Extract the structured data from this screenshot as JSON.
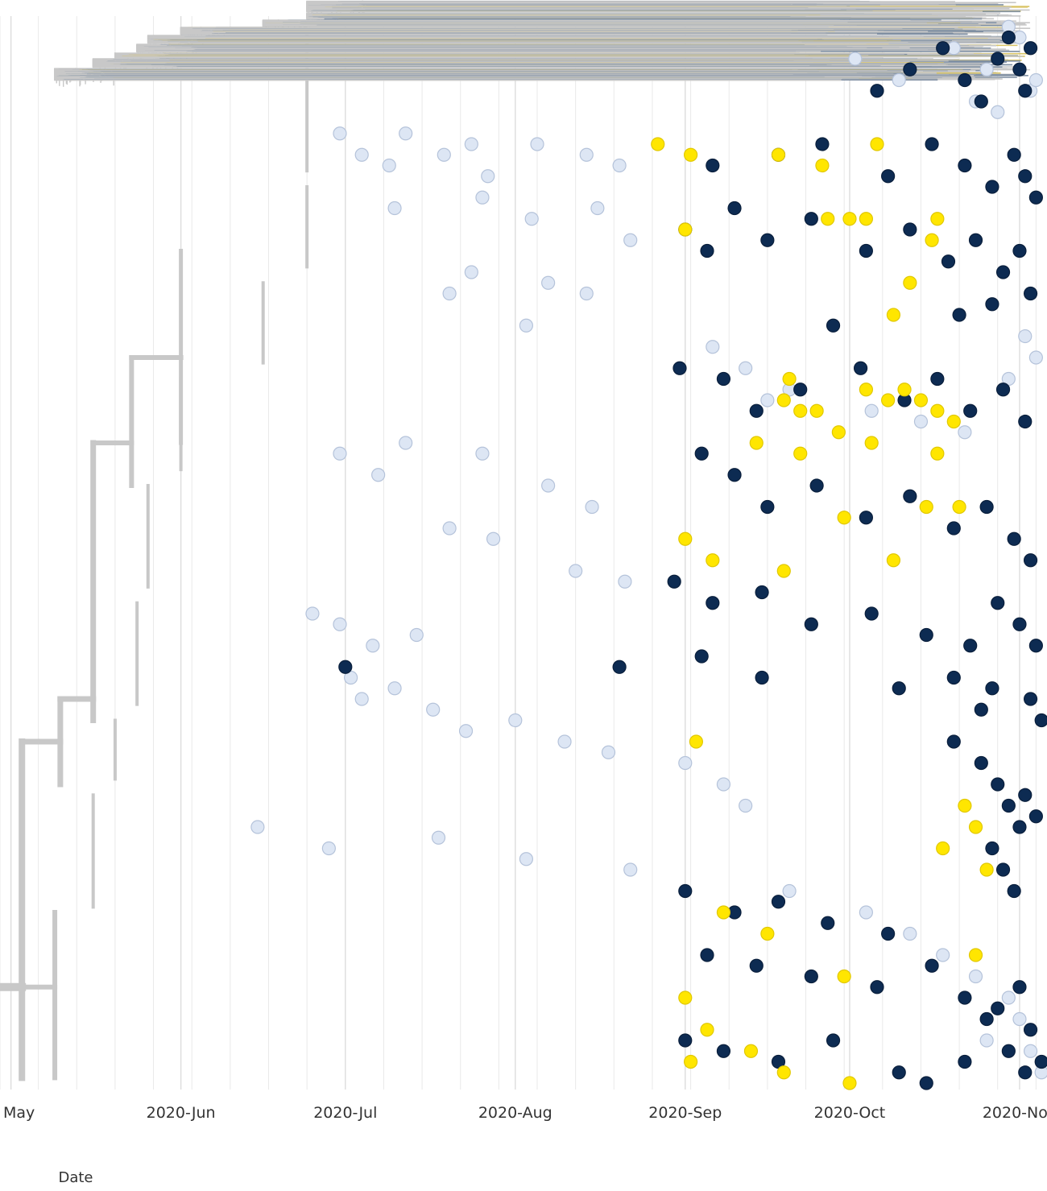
{
  "chart_data": {
    "type": "scatter",
    "subtype": "time-scaled phylogenetic tree",
    "xlabel": "Date",
    "x_ticks": [
      "2020-May",
      "2020-Jun",
      "2020-Jul",
      "2020-Aug",
      "2020-Sep",
      "2020-Oct",
      "2020-Nov"
    ],
    "x_tick_labels": [
      "May",
      "2020-Jun",
      "2020-Jul",
      "2020-Aug",
      "2020-Sep",
      "2020-Oct",
      "2020-Nov"
    ],
    "xlim": [
      "2020-04-29",
      "2020-11-06"
    ],
    "grid": true,
    "legend": "none",
    "colors": {
      "branch": "#c8c8c8",
      "branch_dark": "#7f8fa2",
      "branch_yellow": "#d9c466",
      "tip_light": "#dde6f4",
      "tip_light_stroke": "#b5c3da",
      "tip_dark": "#0d2b52",
      "tip_yellow": "#ffe600",
      "grid": "#e9e9e9"
    },
    "series": [
      {
        "color": "light-blue",
        "points": [
          [
            "2020-06-30",
            11
          ],
          [
            "2020-07-04",
            13
          ],
          [
            "2020-07-09",
            14
          ],
          [
            "2020-07-12",
            11
          ],
          [
            "2020-07-19",
            13
          ],
          [
            "2020-07-24",
            12
          ],
          [
            "2020-07-27",
            15
          ],
          [
            "2020-08-05",
            12
          ],
          [
            "2020-08-14",
            13
          ],
          [
            "2020-08-20",
            14
          ],
          [
            "2020-07-10",
            18
          ],
          [
            "2020-07-26",
            17
          ],
          [
            "2020-08-04",
            19
          ],
          [
            "2020-08-16",
            18
          ],
          [
            "2020-08-22",
            21
          ],
          [
            "2020-07-24",
            24
          ],
          [
            "2020-07-20",
            26
          ],
          [
            "2020-08-07",
            25
          ],
          [
            "2020-08-14",
            26
          ],
          [
            "2020-08-03",
            29
          ],
          [
            "2020-06-30",
            41
          ],
          [
            "2020-07-07",
            43
          ],
          [
            "2020-07-12",
            40
          ],
          [
            "2020-07-26",
            41
          ],
          [
            "2020-08-07",
            44
          ],
          [
            "2020-08-15",
            46
          ],
          [
            "2020-07-20",
            48
          ],
          [
            "2020-07-28",
            49
          ],
          [
            "2020-08-12",
            52
          ],
          [
            "2020-08-21",
            53
          ],
          [
            "2020-06-25",
            56
          ],
          [
            "2020-06-30",
            57
          ],
          [
            "2020-07-06",
            59
          ],
          [
            "2020-07-14",
            58
          ],
          [
            "2020-07-02",
            62
          ],
          [
            "2020-07-04",
            64
          ],
          [
            "2020-07-10",
            63
          ],
          [
            "2020-07-17",
            65
          ],
          [
            "2020-07-23",
            67
          ],
          [
            "2020-08-01",
            66
          ],
          [
            "2020-08-10",
            68
          ],
          [
            "2020-08-18",
            69
          ],
          [
            "2020-09-01",
            70
          ],
          [
            "2020-09-08",
            72
          ],
          [
            "2020-09-12",
            74
          ],
          [
            "2020-06-15",
            76
          ],
          [
            "2020-06-28",
            78
          ],
          [
            "2020-07-18",
            77
          ],
          [
            "2020-08-03",
            79
          ],
          [
            "2020-08-22",
            80
          ],
          [
            "2020-09-20",
            82
          ],
          [
            "2020-10-04",
            84
          ],
          [
            "2020-10-12",
            86
          ],
          [
            "2020-10-18",
            88
          ],
          [
            "2020-10-24",
            90
          ],
          [
            "2020-10-30",
            92
          ],
          [
            "2020-11-01",
            94
          ],
          [
            "2020-11-03",
            97
          ],
          [
            "2020-11-05",
            99
          ],
          [
            "2020-10-26",
            96
          ],
          [
            "2020-10-02",
            4
          ],
          [
            "2020-10-10",
            6
          ],
          [
            "2020-10-20",
            3
          ],
          [
            "2020-10-26",
            5
          ],
          [
            "2020-11-01",
            2
          ],
          [
            "2020-11-03",
            7
          ],
          [
            "2020-10-28",
            9
          ],
          [
            "2020-10-30",
            1
          ],
          [
            "2020-10-24",
            8
          ],
          [
            "2020-11-04",
            6
          ],
          [
            "2020-09-06",
            31
          ],
          [
            "2020-09-12",
            33
          ],
          [
            "2020-09-20",
            35
          ],
          [
            "2020-10-05",
            37
          ],
          [
            "2020-10-22",
            39
          ],
          [
            "2020-11-02",
            30
          ],
          [
            "2020-11-04",
            32
          ],
          [
            "2020-10-30",
            34
          ],
          [
            "2020-09-16",
            36
          ],
          [
            "2020-10-14",
            38
          ]
        ]
      },
      {
        "color": "dark-navy",
        "points": [
          [
            "2020-10-06",
            7
          ],
          [
            "2020-10-12",
            5
          ],
          [
            "2020-10-18",
            3
          ],
          [
            "2020-10-22",
            6
          ],
          [
            "2020-10-25",
            8
          ],
          [
            "2020-10-28",
            4
          ],
          [
            "2020-10-30",
            2
          ],
          [
            "2020-11-01",
            5
          ],
          [
            "2020-11-02",
            7
          ],
          [
            "2020-11-03",
            3
          ],
          [
            "2020-09-06",
            14
          ],
          [
            "2020-09-18",
            13
          ],
          [
            "2020-09-26",
            12
          ],
          [
            "2020-10-08",
            15
          ],
          [
            "2020-10-16",
            12
          ],
          [
            "2020-10-22",
            14
          ],
          [
            "2020-10-27",
            16
          ],
          [
            "2020-10-31",
            13
          ],
          [
            "2020-11-02",
            15
          ],
          [
            "2020-11-04",
            17
          ],
          [
            "2020-09-01",
            20
          ],
          [
            "2020-09-05",
            22
          ],
          [
            "2020-09-10",
            18
          ],
          [
            "2020-09-16",
            21
          ],
          [
            "2020-09-24",
            19
          ],
          [
            "2020-10-04",
            22
          ],
          [
            "2020-10-12",
            20
          ],
          [
            "2020-10-19",
            23
          ],
          [
            "2020-10-24",
            21
          ],
          [
            "2020-10-29",
            24
          ],
          [
            "2020-11-01",
            22
          ],
          [
            "2020-11-03",
            26
          ],
          [
            "2020-10-27",
            27
          ],
          [
            "2020-10-21",
            28
          ],
          [
            "2020-09-28",
            29
          ],
          [
            "2020-08-31",
            33
          ],
          [
            "2020-09-08",
            34
          ],
          [
            "2020-09-14",
            37
          ],
          [
            "2020-09-22",
            35
          ],
          [
            "2020-10-03",
            33
          ],
          [
            "2020-10-11",
            36
          ],
          [
            "2020-10-17",
            34
          ],
          [
            "2020-10-23",
            37
          ],
          [
            "2020-10-29",
            35
          ],
          [
            "2020-11-02",
            38
          ],
          [
            "2020-09-04",
            41
          ],
          [
            "2020-09-10",
            43
          ],
          [
            "2020-09-16",
            46
          ],
          [
            "2020-09-25",
            44
          ],
          [
            "2020-10-04",
            47
          ],
          [
            "2020-10-12",
            45
          ],
          [
            "2020-10-20",
            48
          ],
          [
            "2020-10-26",
            46
          ],
          [
            "2020-10-31",
            49
          ],
          [
            "2020-11-03",
            51
          ],
          [
            "2020-08-30",
            53
          ],
          [
            "2020-09-06",
            55
          ],
          [
            "2020-09-15",
            54
          ],
          [
            "2020-09-24",
            57
          ],
          [
            "2020-10-05",
            56
          ],
          [
            "2020-10-15",
            58
          ],
          [
            "2020-10-23",
            59
          ],
          [
            "2020-10-28",
            55
          ],
          [
            "2020-11-01",
            57
          ],
          [
            "2020-11-04",
            59
          ],
          [
            "2020-07-01",
            61
          ],
          [
            "2020-08-20",
            61
          ],
          [
            "2020-09-04",
            60
          ],
          [
            "2020-09-15",
            62
          ],
          [
            "2020-10-10",
            63
          ],
          [
            "2020-10-20",
            62
          ],
          [
            "2020-10-27",
            63
          ],
          [
            "2020-11-03",
            64
          ],
          [
            "2020-11-05",
            66
          ],
          [
            "2020-10-25",
            65
          ],
          [
            "2020-10-20",
            68
          ],
          [
            "2020-10-25",
            70
          ],
          [
            "2020-10-28",
            72
          ],
          [
            "2020-10-30",
            74
          ],
          [
            "2020-11-01",
            76
          ],
          [
            "2020-10-27",
            78
          ],
          [
            "2020-10-29",
            80
          ],
          [
            "2020-10-31",
            82
          ],
          [
            "2020-11-02",
            73
          ],
          [
            "2020-11-04",
            75
          ],
          [
            "2020-09-01",
            82
          ],
          [
            "2020-09-10",
            84
          ],
          [
            "2020-09-18",
            83
          ],
          [
            "2020-09-27",
            85
          ],
          [
            "2020-10-08",
            86
          ],
          [
            "2020-09-05",
            88
          ],
          [
            "2020-09-14",
            89
          ],
          [
            "2020-09-24",
            90
          ],
          [
            "2020-10-06",
            91
          ],
          [
            "2020-10-16",
            89
          ],
          [
            "2020-10-22",
            92
          ],
          [
            "2020-10-28",
            93
          ],
          [
            "2020-11-01",
            91
          ],
          [
            "2020-11-03",
            95
          ],
          [
            "2020-10-26",
            94
          ],
          [
            "2020-09-01",
            96
          ],
          [
            "2020-09-08",
            97
          ],
          [
            "2020-09-18",
            98
          ],
          [
            "2020-09-28",
            96
          ],
          [
            "2020-10-10",
            99
          ],
          [
            "2020-10-22",
            98
          ],
          [
            "2020-10-30",
            97
          ],
          [
            "2020-11-02",
            99
          ],
          [
            "2020-11-05",
            98
          ],
          [
            "2020-10-15",
            100
          ]
        ]
      },
      {
        "color": "yellow",
        "points": [
          [
            "2020-08-27",
            12
          ],
          [
            "2020-09-02",
            13
          ],
          [
            "2020-09-18",
            13
          ],
          [
            "2020-09-26",
            14
          ],
          [
            "2020-10-06",
            12
          ],
          [
            "2020-09-27",
            19
          ],
          [
            "2020-10-01",
            19
          ],
          [
            "2020-10-04",
            19
          ],
          [
            "2020-10-17",
            19
          ],
          [
            "2020-10-16",
            21
          ],
          [
            "2020-09-01",
            20
          ],
          [
            "2020-10-12",
            25
          ],
          [
            "2020-10-09",
            28
          ],
          [
            "2020-09-20",
            34
          ],
          [
            "2020-09-19",
            36
          ],
          [
            "2020-09-22",
            37
          ],
          [
            "2020-09-25",
            37
          ],
          [
            "2020-10-04",
            35
          ],
          [
            "2020-10-08",
            36
          ],
          [
            "2020-10-11",
            35
          ],
          [
            "2020-10-14",
            36
          ],
          [
            "2020-10-17",
            37
          ],
          [
            "2020-10-20",
            38
          ],
          [
            "2020-09-14",
            40
          ],
          [
            "2020-09-22",
            41
          ],
          [
            "2020-09-29",
            39
          ],
          [
            "2020-10-05",
            40
          ],
          [
            "2020-10-17",
            41
          ],
          [
            "2020-09-01",
            49
          ],
          [
            "2020-09-06",
            51
          ],
          [
            "2020-09-19",
            52
          ],
          [
            "2020-10-09",
            51
          ],
          [
            "2020-10-21",
            46
          ],
          [
            "2020-10-15",
            46
          ],
          [
            "2020-09-30",
            47
          ],
          [
            "2020-09-03",
            68
          ],
          [
            "2020-10-22",
            74
          ],
          [
            "2020-10-24",
            76
          ],
          [
            "2020-10-26",
            80
          ],
          [
            "2020-10-18",
            78
          ],
          [
            "2020-09-08",
            84
          ],
          [
            "2020-09-16",
            86
          ],
          [
            "2020-09-30",
            90
          ],
          [
            "2020-09-01",
            92
          ],
          [
            "2020-09-05",
            95
          ],
          [
            "2020-09-13",
            97
          ],
          [
            "2020-09-19",
            99
          ],
          [
            "2020-10-01",
            100
          ],
          [
            "2020-10-24",
            88
          ],
          [
            "2020-09-02",
            98
          ]
        ]
      }
    ]
  }
}
